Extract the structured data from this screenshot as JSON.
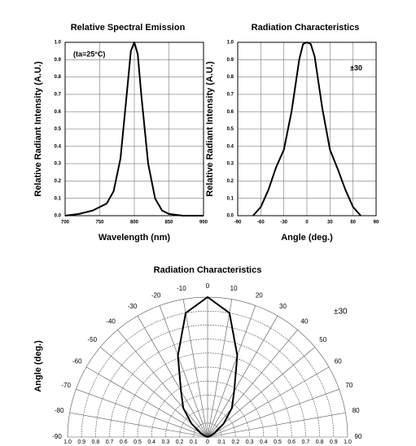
{
  "chart_data": [
    {
      "type": "line",
      "title": "Relative Spectral Emission",
      "x_label": "Wavelength (nm)",
      "y_label": "Relative Radiant Intensity (A.U.)",
      "annotation": "(ta=25°C)",
      "x": [
        700,
        720,
        740,
        760,
        770,
        780,
        790,
        795,
        800,
        805,
        810,
        820,
        830,
        840,
        850,
        870,
        900
      ],
      "values": [
        0,
        0.01,
        0.03,
        0.07,
        0.14,
        0.33,
        0.74,
        0.95,
        1.0,
        0.93,
        0.7,
        0.3,
        0.1,
        0.03,
        0.01,
        0,
        0
      ],
      "color": "#000000",
      "xlim": [
        700,
        900
      ],
      "xticks": [
        700,
        750,
        800,
        850,
        900
      ],
      "ylim": [
        0,
        1
      ],
      "yticks": [
        {
          "value": 0,
          "label": "0.0"
        },
        0.1,
        0.2,
        0.3,
        0.4,
        0.5,
        0.6,
        0.7,
        0.8,
        0.9,
        {
          "value": 1,
          "label": "1.0"
        }
      ],
      "grid": true
    },
    {
      "type": "line",
      "title": "Radiation Characteristics",
      "x_label": "Angle (deg.)",
      "y_label": "Relative Radiant Intensity (A.U.)",
      "annotation": "±30",
      "x": [
        -70,
        -60,
        -50,
        -40,
        -30,
        -20,
        -10,
        -5,
        0,
        5,
        10,
        20,
        30,
        40,
        50,
        60,
        70
      ],
      "values": [
        0,
        0.05,
        0.15,
        0.28,
        0.38,
        0.6,
        0.9,
        0.99,
        1.0,
        0.99,
        0.92,
        0.62,
        0.38,
        0.27,
        0.15,
        0.05,
        0
      ],
      "color": "#000000",
      "xlim": [
        -90,
        90
      ],
      "xticks": [
        -90,
        -60,
        -30,
        0,
        30,
        60,
        90
      ],
      "ylim": [
        0,
        1
      ],
      "yticks": [
        {
          "value": 0,
          "label": "0.0"
        },
        0.1,
        0.2,
        0.3,
        0.4,
        0.5,
        0.6,
        0.7,
        0.8,
        0.9,
        {
          "value": 1,
          "label": "1.0"
        }
      ],
      "grid": true
    },
    {
      "type": "polar",
      "title": "Radiation Characteristics",
      "y_label": "Angle (deg.)",
      "annotation": "±30",
      "angles": [
        -90,
        -80,
        -70,
        -60,
        -50,
        -40,
        -30,
        -20,
        -10,
        0,
        10,
        20,
        30,
        40,
        50,
        60,
        70,
        80,
        90
      ],
      "values": [
        0,
        0,
        0.02,
        0.06,
        0.15,
        0.27,
        0.38,
        0.62,
        0.9,
        1.0,
        0.9,
        0.62,
        0.38,
        0.27,
        0.15,
        0.06,
        0.02,
        0,
        0
      ],
      "color": "#000000",
      "angle_ticks": [
        -90,
        -80,
        -70,
        -60,
        -50,
        -40,
        -30,
        -20,
        -10,
        0,
        10,
        20,
        30,
        40,
        50,
        60,
        70,
        80,
        90
      ],
      "rlim": [
        0,
        1
      ],
      "rticks": [
        0,
        0.1,
        0.2,
        0.3,
        0.4,
        0.5,
        0.6,
        0.7,
        0.8,
        0.9,
        {
          "value": 1,
          "label": "1.0"
        }
      ]
    }
  ]
}
